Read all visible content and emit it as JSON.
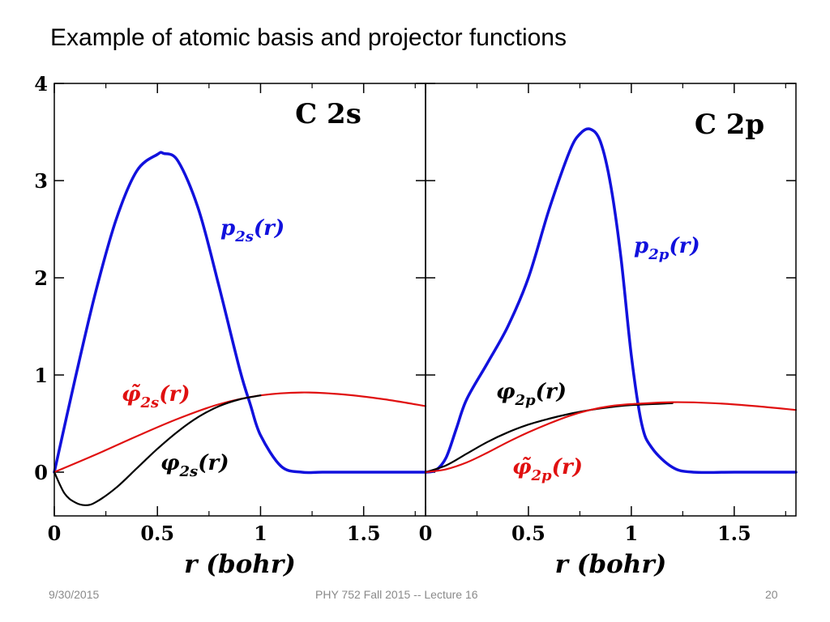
{
  "slide_title": "Example of atomic basis and projector functions",
  "footer": {
    "date": "9/30/2015",
    "course": "PHY 752  Fall 2015 -- Lecture 16",
    "page": "20"
  },
  "colors": {
    "blue": "#1111dd",
    "red": "#e01010",
    "black": "#000000"
  },
  "chart_data": [
    {
      "type": "line",
      "title": "C 2s",
      "xlabel": "r (bohr)",
      "ylabel": "",
      "xlim": [
        0,
        1.8
      ],
      "ylim": [
        -0.45,
        4
      ],
      "x_ticks": [
        "0",
        "0.5",
        "1",
        "1.5"
      ],
      "y_ticks": [
        "0",
        "1",
        "2",
        "3",
        "4"
      ],
      "series": [
        {
          "name": "p2s(r)",
          "label_main": "p",
          "label_sub": "2s",
          "label_tail": "(r)",
          "color": "blue",
          "x": [
            0,
            0.1,
            0.2,
            0.3,
            0.4,
            0.5,
            0.53,
            0.6,
            0.7,
            0.8,
            0.9,
            0.95,
            1.0,
            1.1,
            1.2,
            1.3,
            1.5,
            1.8
          ],
          "y": [
            0,
            0.95,
            1.85,
            2.6,
            3.1,
            3.27,
            3.28,
            3.2,
            2.7,
            1.9,
            1.05,
            0.7,
            0.38,
            0.06,
            0.0,
            0.0,
            0.0,
            0.0
          ]
        },
        {
          "name": "φ̃2s(r)",
          "label_main": "φ̃",
          "label_sub": "2s",
          "label_tail": "(r)",
          "color": "red",
          "x": [
            0,
            0.2,
            0.4,
            0.6,
            0.8,
            1.0,
            1.2,
            1.4,
            1.6,
            1.8
          ],
          "y": [
            0,
            0.18,
            0.37,
            0.55,
            0.7,
            0.79,
            0.82,
            0.8,
            0.75,
            0.68
          ]
        },
        {
          "name": "φ2s(r)",
          "label_main": "φ",
          "label_sub": "2s",
          "label_tail": "(r)",
          "color": "black",
          "x": [
            0,
            0.05,
            0.1,
            0.15,
            0.2,
            0.3,
            0.4,
            0.5,
            0.6,
            0.7,
            0.8,
            0.9,
            1.0
          ],
          "y": [
            0,
            -0.22,
            -0.31,
            -0.34,
            -0.31,
            -0.16,
            0.04,
            0.24,
            0.42,
            0.57,
            0.68,
            0.75,
            0.79
          ]
        }
      ]
    },
    {
      "type": "line",
      "title": "C 2p",
      "xlabel": "r (bohr)",
      "ylabel": "",
      "xlim": [
        0,
        1.8
      ],
      "ylim": [
        -0.45,
        4
      ],
      "x_ticks": [
        "0",
        "0.5",
        "1",
        "1.5"
      ],
      "y_ticks": [],
      "series": [
        {
          "name": "p2p(r)",
          "label_main": "p",
          "label_sub": "2p",
          "label_tail": "(r)",
          "color": "blue",
          "x": [
            0,
            0.05,
            0.1,
            0.15,
            0.2,
            0.3,
            0.4,
            0.5,
            0.6,
            0.7,
            0.75,
            0.8,
            0.85,
            0.9,
            0.95,
            1.0,
            1.05,
            1.1,
            1.2,
            1.3,
            1.5,
            1.8
          ],
          "y": [
            0,
            0.02,
            0.15,
            0.45,
            0.75,
            1.12,
            1.5,
            2.0,
            2.7,
            3.3,
            3.48,
            3.53,
            3.4,
            2.95,
            2.2,
            1.2,
            0.5,
            0.25,
            0.05,
            0.0,
            0.0,
            0.0
          ]
        },
        {
          "name": "φ2p(r)",
          "label_main": "φ",
          "label_sub": "2p",
          "label_tail": "(r)",
          "color": "black",
          "x": [
            0,
            0.1,
            0.2,
            0.3,
            0.4,
            0.5,
            0.6,
            0.7,
            0.8,
            0.9,
            1.0,
            1.2
          ],
          "y": [
            0,
            0.07,
            0.19,
            0.31,
            0.41,
            0.49,
            0.55,
            0.6,
            0.64,
            0.67,
            0.69,
            0.71
          ]
        },
        {
          "name": "φ̃2p(r)",
          "label_main": "φ̃",
          "label_sub": "2p",
          "label_tail": "(r)",
          "color": "red",
          "x": [
            0,
            0.1,
            0.2,
            0.3,
            0.4,
            0.5,
            0.6,
            0.7,
            0.8,
            0.9,
            1.0,
            1.2,
            1.4,
            1.6,
            1.8
          ],
          "y": [
            0,
            0.03,
            0.1,
            0.2,
            0.31,
            0.41,
            0.5,
            0.58,
            0.64,
            0.68,
            0.7,
            0.72,
            0.71,
            0.68,
            0.64
          ]
        }
      ]
    }
  ]
}
